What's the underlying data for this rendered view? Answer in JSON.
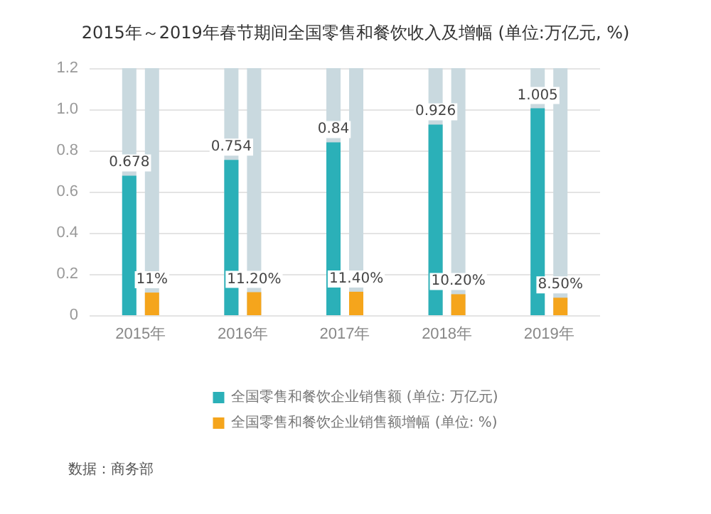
{
  "chart_data": {
    "type": "bar",
    "title": "2015年～2019年春节期间全国零售和餐饮收入及增幅 (单位:万亿元, %)",
    "categories": [
      "2015年",
      "2016年",
      "2017年",
      "2018年",
      "2019年"
    ],
    "series": [
      {
        "name": "全国零售和餐饮企业销售额 (单位: 万亿元)",
        "color": "#2bb0b8",
        "values": [
          0.678,
          0.754,
          0.84,
          0.926,
          1.005
        ],
        "value_labels": [
          "0.678",
          "0.754",
          "0.84",
          "0.926",
          "1.005"
        ]
      },
      {
        "name": "全国零售和餐饮企业销售额增幅 (单位: %)",
        "color": "#f5a51c",
        "values": [
          0.11,
          0.112,
          0.114,
          0.102,
          0.085
        ],
        "value_labels": [
          "11%",
          "11.20%",
          "11.40%",
          "10.20%",
          "8.50%"
        ]
      }
    ],
    "ylim": [
      0,
      1.2
    ],
    "yticks": [
      0,
      0.2,
      0.4,
      0.6,
      0.8,
      {
        "value": 1,
        "label": "1.0"
      },
      1.2
    ],
    "grid": "y",
    "legend": "bottom",
    "annotations": [
      "数据：商务部"
    ]
  }
}
